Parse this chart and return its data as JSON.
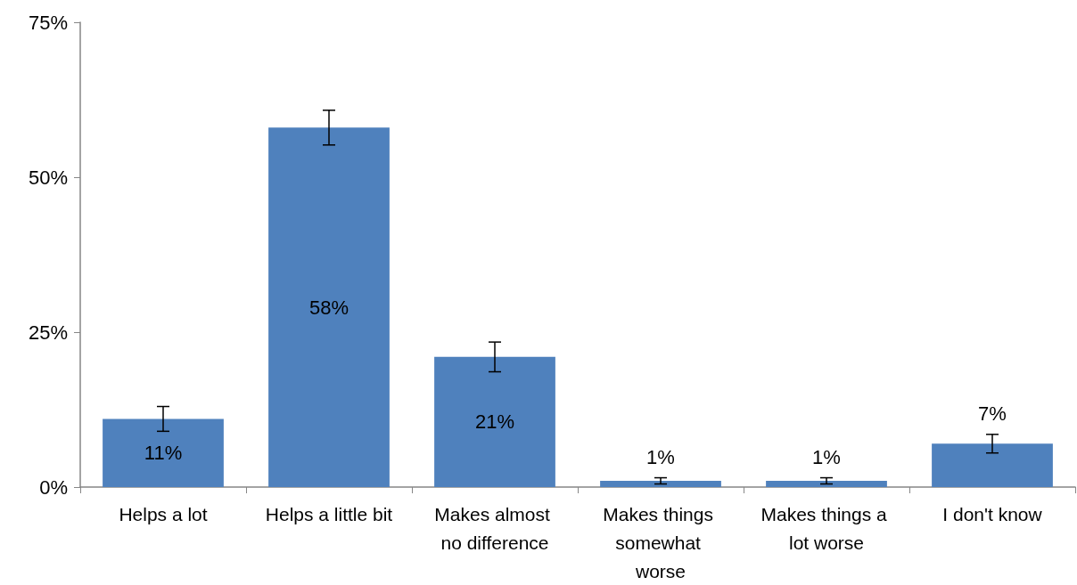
{
  "chart_data": {
    "type": "bar",
    "categories": [
      "Helps a lot",
      "Helps a little bit",
      "Makes almost no difference",
      "Makes things somewhat worse",
      "Makes things a lot worse",
      "I don't know"
    ],
    "values": [
      11,
      58,
      21,
      1,
      1,
      7
    ],
    "value_labels": [
      "11%",
      "58%",
      "21%",
      "1%",
      "1%",
      "7%"
    ],
    "errors": [
      2,
      2.8,
      2.4,
      0.5,
      0.5,
      1.5
    ],
    "color": "#4f81bd",
    "ylim": [
      0,
      75
    ],
    "yticks": [
      {
        "value": 0,
        "label": "0%"
      },
      {
        "value": 25,
        "label": "25%"
      },
      {
        "value": 50,
        "label": "50%"
      },
      {
        "value": 75,
        "label": "75%"
      }
    ],
    "grid": false
  }
}
